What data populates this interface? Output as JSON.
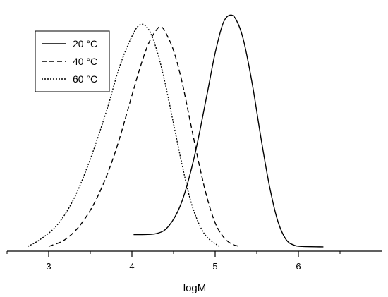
{
  "chart_data": {
    "type": "line",
    "xlabel": "logM",
    "ylabel": "",
    "xlim": [
      2.5,
      7.0
    ],
    "ylim": [
      0,
      1.1
    ],
    "x_ticks": [
      3,
      4,
      5,
      6
    ],
    "x_tick_labels": [
      "3",
      "4",
      "5",
      "6"
    ],
    "grid": false,
    "legend_position": "top-left",
    "series": [
      {
        "name": "20 °C",
        "line_style": "solid",
        "color": "#000000",
        "x": [
          4.02,
          4.3,
          4.45,
          4.6,
          4.75,
          4.9,
          5.0,
          5.1,
          5.2,
          5.28,
          5.35,
          5.45,
          5.55,
          5.65,
          5.75,
          5.85,
          5.95,
          6.05,
          6.3
        ],
        "y": [
          0.07,
          0.075,
          0.11,
          0.21,
          0.4,
          0.66,
          0.84,
          0.97,
          1.0,
          0.96,
          0.88,
          0.7,
          0.48,
          0.28,
          0.13,
          0.05,
          0.025,
          0.02,
          0.018
        ]
      },
      {
        "name": "40 °C",
        "line_style": "dashed",
        "color": "#000000",
        "x": [
          3.0,
          3.2,
          3.4,
          3.6,
          3.8,
          4.0,
          4.1,
          4.2,
          4.3,
          4.35,
          4.4,
          4.5,
          4.6,
          4.7,
          4.8,
          4.9,
          5.0,
          5.1,
          5.2,
          5.3
        ],
        "y": [
          0.02,
          0.05,
          0.12,
          0.24,
          0.42,
          0.66,
          0.78,
          0.88,
          0.94,
          0.95,
          0.93,
          0.85,
          0.72,
          0.55,
          0.38,
          0.23,
          0.12,
          0.06,
          0.03,
          0.02
        ]
      },
      {
        "name": "60 °C",
        "line_style": "dotted",
        "color": "#000000",
        "x": [
          2.75,
          2.9,
          3.1,
          3.3,
          3.5,
          3.7,
          3.85,
          4.0,
          4.1,
          4.2,
          4.3,
          4.4,
          4.5,
          4.6,
          4.7,
          4.8,
          4.9,
          5.05
        ],
        "y": [
          0.02,
          0.05,
          0.11,
          0.22,
          0.39,
          0.6,
          0.78,
          0.91,
          0.96,
          0.94,
          0.85,
          0.71,
          0.54,
          0.37,
          0.22,
          0.12,
          0.06,
          0.02
        ]
      }
    ]
  }
}
